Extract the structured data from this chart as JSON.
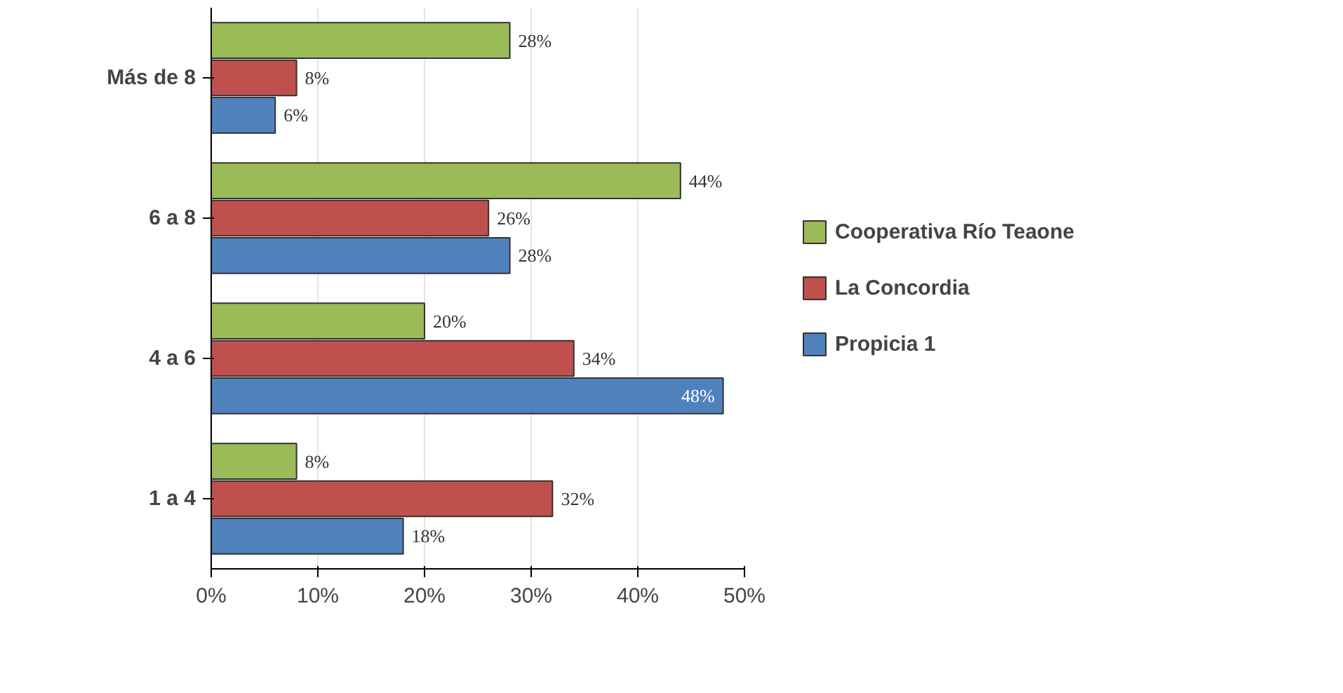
{
  "chart_data": {
    "type": "bar",
    "orientation": "horizontal",
    "categories": [
      "Más de 8",
      "6 a 8",
      "4 a 6",
      "1 a 4"
    ],
    "series": [
      {
        "name": "Cooperativa Río Teaone",
        "color": "#9bbb59",
        "values": [
          28,
          44,
          20,
          8
        ],
        "value_labels": [
          "28%",
          "44%",
          "20%",
          "8%"
        ]
      },
      {
        "name": "La Concordia",
        "color": "#c0504d",
        "values": [
          8,
          26,
          34,
          32
        ],
        "value_labels": [
          "8%",
          "26%",
          "34%",
          "32%"
        ]
      },
      {
        "name": "Propicia 1",
        "color": "#4f81bd",
        "values": [
          6,
          28,
          48,
          18
        ],
        "value_labels": [
          "6%",
          "28%",
          "48%",
          "18%"
        ]
      }
    ],
    "xlim": [
      0,
      50
    ],
    "xticks": [
      {
        "value": 0,
        "label": "0%"
      },
      {
        "value": 10,
        "label": "10%"
      },
      {
        "value": 20,
        "label": "20%"
      },
      {
        "value": 30,
        "label": "30%"
      },
      {
        "value": 40,
        "label": "40%"
      },
      {
        "value": 50,
        "label": "50%"
      }
    ],
    "grid": "x",
    "legend": "right"
  }
}
